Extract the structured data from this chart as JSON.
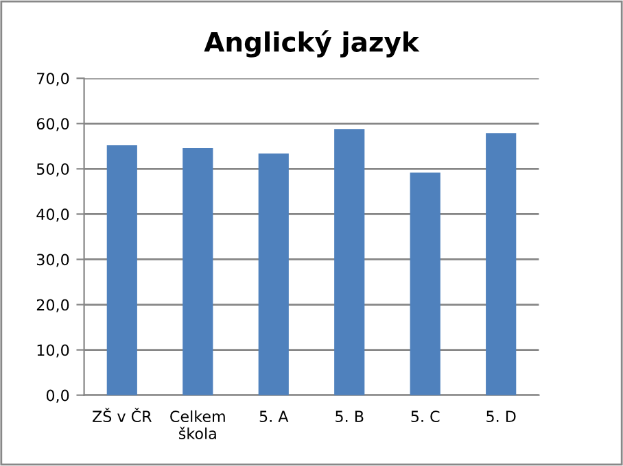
{
  "chart_data": {
    "type": "bar",
    "title": "Anglický jazyk",
    "categories": [
      "ZŠ v ČR",
      "Celkem\nškola",
      "5. A",
      "5. B",
      "5. C",
      "5. D"
    ],
    "values": [
      55.2,
      54.6,
      53.4,
      58.8,
      49.2,
      57.9
    ],
    "color": "#4f81bd",
    "ylim": [
      0,
      70
    ],
    "yticks": [
      {
        "value": 0,
        "label": "0,0"
      },
      {
        "value": 10,
        "label": "10,0"
      },
      {
        "value": 20,
        "label": "20,0"
      },
      {
        "value": 30,
        "label": "30,0"
      },
      {
        "value": 40,
        "label": "40,0"
      },
      {
        "value": 50,
        "label": "50,0"
      },
      {
        "value": 60,
        "label": "60,0"
      },
      {
        "value": 70,
        "label": "70,0"
      }
    ],
    "grid": "y"
  }
}
